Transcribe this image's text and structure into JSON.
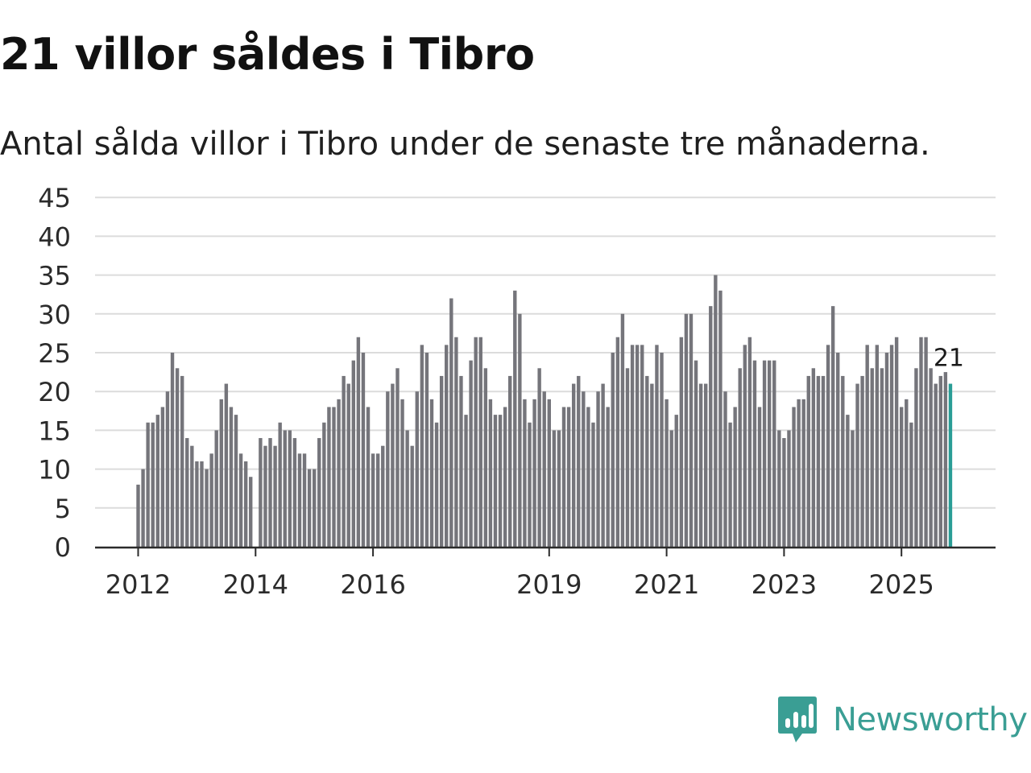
{
  "header": {
    "title": "21 villor såldes i Tibro",
    "subtitle": "Antal sålda villor i Tibro under de senaste tre månaderna."
  },
  "brand": {
    "name": "Newsworthy",
    "color": "#3a9e94"
  },
  "chart_data": {
    "type": "bar",
    "title": "21 villor såldes i Tibro",
    "subtitle": "Antal sålda villor i Tibro under de senaste tre månaderna.",
    "xlabel": "",
    "ylabel": "",
    "ylim": [
      0,
      45
    ],
    "yticks": [
      0,
      5,
      10,
      15,
      20,
      25,
      30,
      35,
      40,
      45
    ],
    "xticks": [
      {
        "label": "2012",
        "index": 0
      },
      {
        "label": "2014",
        "index": 24
      },
      {
        "label": "2016",
        "index": 48
      },
      {
        "label": "2019",
        "index": 84
      },
      {
        "label": "2021",
        "index": 108
      },
      {
        "label": "2023",
        "index": 132
      },
      {
        "label": "2025",
        "index": 156
      }
    ],
    "start": "2012-01",
    "frequency": "monthly",
    "grid": true,
    "bar_color": "#75757b",
    "highlight_color": "#2a9d96",
    "highlight_label": "21",
    "values": [
      8,
      10,
      16,
      16,
      17,
      18,
      20,
      25,
      23,
      22,
      14,
      13,
      11,
      11,
      10,
      12,
      15,
      19,
      21,
      18,
      17,
      12,
      11,
      9,
      0,
      14,
      13,
      14,
      13,
      16,
      15,
      15,
      14,
      12,
      12,
      10,
      10,
      14,
      16,
      18,
      18,
      19,
      22,
      21,
      24,
      27,
      25,
      18,
      12,
      12,
      13,
      20,
      21,
      23,
      19,
      15,
      13,
      20,
      26,
      25,
      19,
      16,
      22,
      26,
      32,
      27,
      22,
      17,
      24,
      27,
      27,
      23,
      19,
      17,
      17,
      18,
      22,
      33,
      30,
      19,
      16,
      19,
      23,
      20,
      19,
      15,
      15,
      18,
      18,
      21,
      22,
      20,
      18,
      16,
      20,
      21,
      18,
      25,
      27,
      30,
      23,
      26,
      26,
      26,
      22,
      21,
      26,
      25,
      19,
      15,
      17,
      27,
      30,
      30,
      24,
      21,
      21,
      31,
      35,
      33,
      20,
      16,
      18,
      23,
      26,
      27,
      24,
      18,
      24,
      24,
      24,
      15,
      14,
      15,
      18,
      19,
      19,
      22,
      23,
      22,
      22,
      26,
      31,
      25,
      22,
      17,
      15,
      21,
      22,
      26,
      23,
      26,
      23,
      25,
      26,
      27,
      18,
      19,
      16,
      23,
      27,
      27,
      23,
      21,
      22,
      22.5,
      21
    ]
  }
}
